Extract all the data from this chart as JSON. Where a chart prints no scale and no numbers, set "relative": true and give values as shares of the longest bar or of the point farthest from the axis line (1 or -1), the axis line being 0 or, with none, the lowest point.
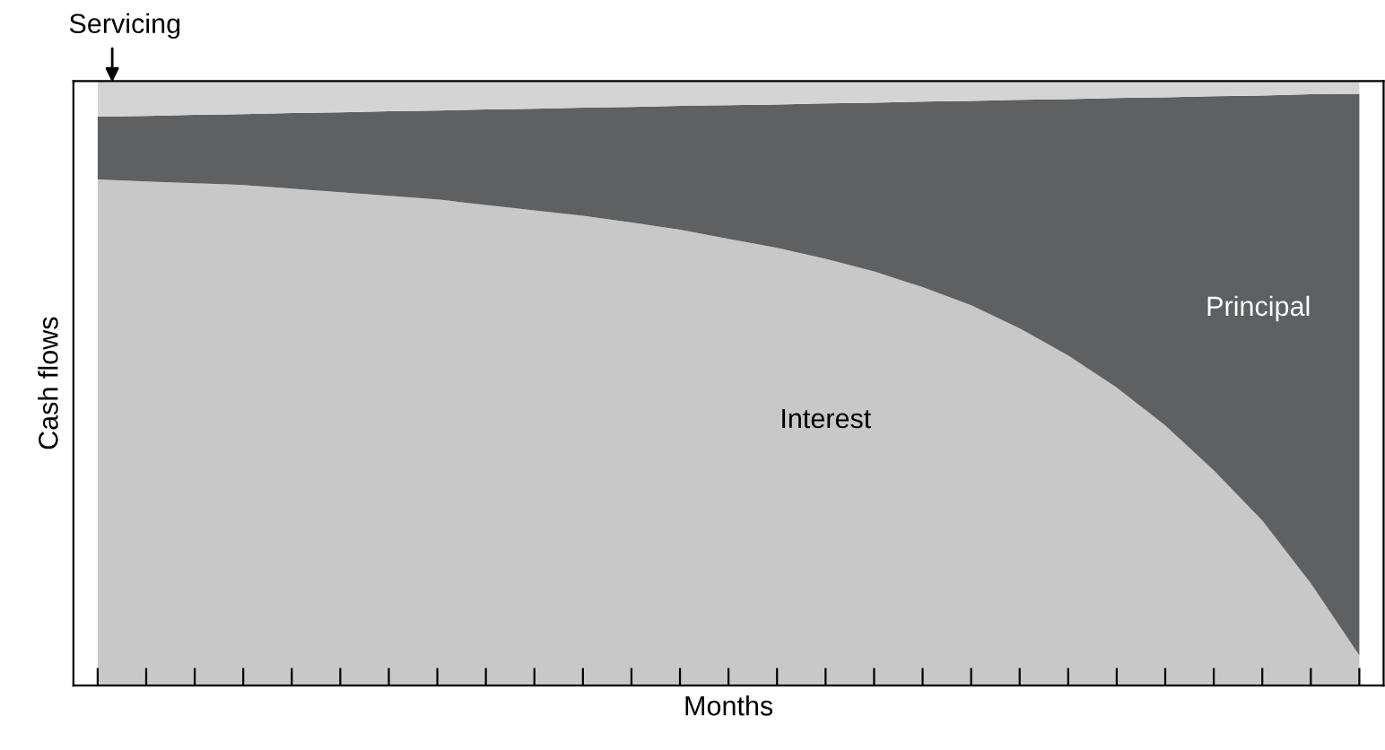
{
  "chart_data": {
    "type": "area",
    "stacked": true,
    "relative": true,
    "xlabel": "Months",
    "ylabel": "Cash flows",
    "tick_labels": false,
    "grid": false,
    "legend": false,
    "categories": [
      null,
      null,
      null,
      null,
      null,
      null,
      null,
      null,
      null,
      null,
      null,
      null,
      null,
      null,
      null,
      null,
      null,
      null,
      null,
      null,
      null,
      null,
      null,
      null,
      null,
      null,
      null
    ],
    "series": [
      {
        "name": "Interest",
        "color": "#c8c8c8",
        "values": [
          0.837,
          0.834,
          0.831,
          0.828,
          0.822,
          0.816,
          0.81,
          0.804,
          0.795,
          0.786,
          0.777,
          0.766,
          0.754,
          0.739,
          0.724,
          0.706,
          0.685,
          0.659,
          0.629,
          0.591,
          0.546,
          0.493,
          0.43,
          0.356,
          0.273,
          0.169,
          0.05
        ]
      },
      {
        "name": "Principal",
        "color": "#5f6062",
        "values": [
          0.104,
          0.108,
          0.113,
          0.117,
          0.125,
          0.132,
          0.14,
          0.147,
          0.158,
          0.168,
          0.179,
          0.191,
          0.205,
          0.221,
          0.237,
          0.257,
          0.279,
          0.307,
          0.338,
          0.378,
          0.424,
          0.479,
          0.543,
          0.619,
          0.703,
          0.809,
          0.929
        ]
      },
      {
        "name": "Servicing",
        "color": "#d4d4d4",
        "values": [
          0.059,
          0.058,
          0.056,
          0.055,
          0.053,
          0.052,
          0.05,
          0.049,
          0.047,
          0.046,
          0.044,
          0.043,
          0.041,
          0.04,
          0.039,
          0.037,
          0.036,
          0.034,
          0.033,
          0.031,
          0.03,
          0.028,
          0.027,
          0.025,
          0.024,
          0.022,
          0.021
        ]
      }
    ]
  }
}
